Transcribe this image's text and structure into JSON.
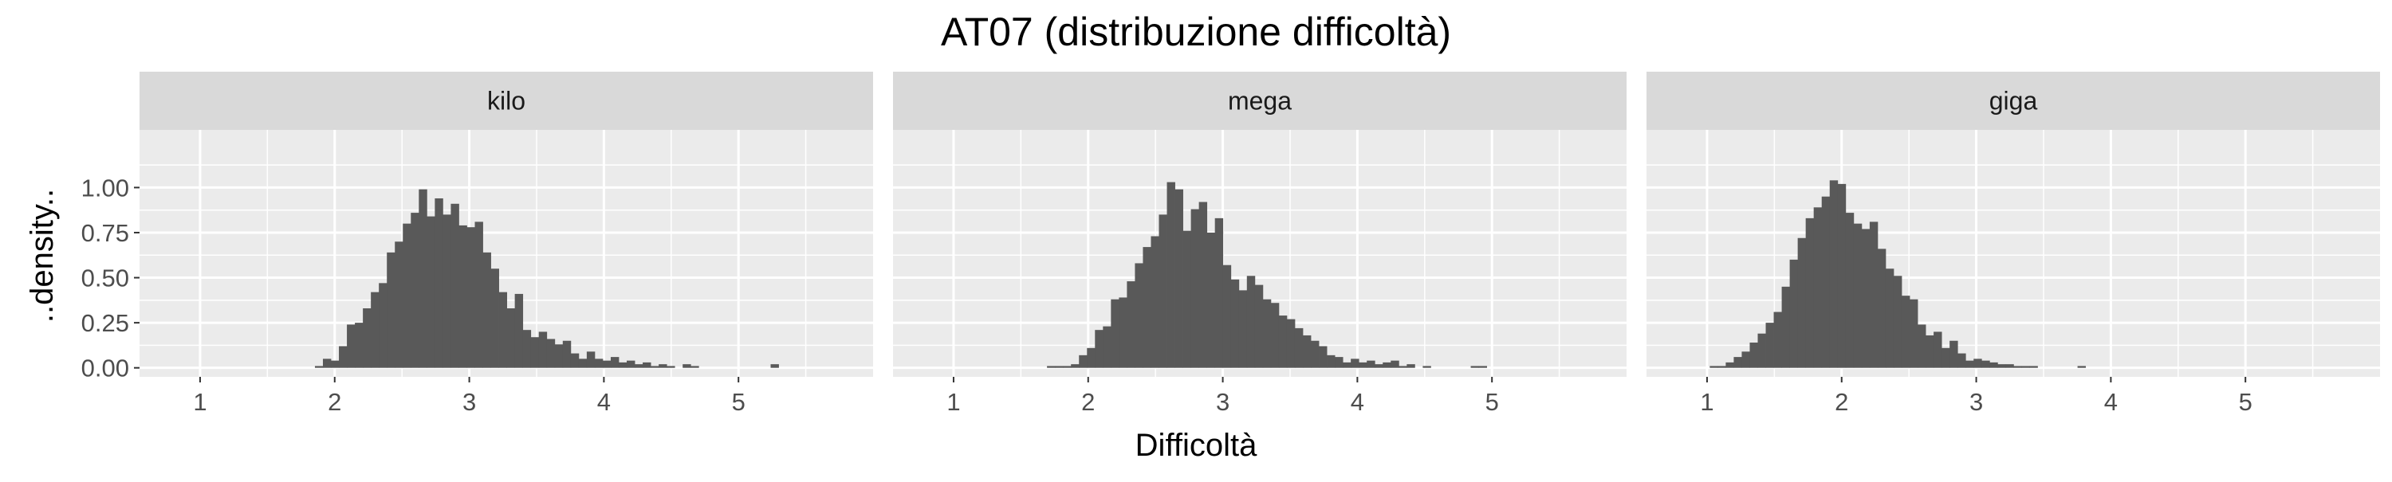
{
  "title": "AT07 (distribuzione difficoltà)",
  "xlabel": "Difficoltà",
  "ylabel": "..density..",
  "colors": {
    "panel_bg": "#EBEBEB",
    "strip_bg": "#D9D9D9",
    "grid": "#FFFFFF",
    "bar": "#595959",
    "text": "#1A1A1A",
    "tick_text": "#4D4D4D"
  },
  "chart_data": {
    "type": "bar",
    "subtype": "histogram-facets",
    "xlim": [
      0.55,
      6.0
    ],
    "ylim": [
      -0.05,
      1.32
    ],
    "x_ticks": [
      1,
      2,
      3,
      4,
      5
    ],
    "y_ticks": [
      0.0,
      0.25,
      0.5,
      0.75,
      1.0
    ],
    "y_tick_labels": [
      "0.00",
      "0.25",
      "0.50",
      "0.75",
      "1.00"
    ],
    "bin_width": 0.0594,
    "grid": true,
    "facets": [
      {
        "name": "kilo",
        "bin_start": 1.853,
        "values": [
          0.01,
          0.05,
          0.04,
          0.12,
          0.24,
          0.25,
          0.33,
          0.42,
          0.47,
          0.64,
          0.7,
          0.8,
          0.86,
          0.99,
          0.84,
          0.94,
          0.85,
          0.91,
          0.79,
          0.78,
          0.81,
          0.64,
          0.55,
          0.42,
          0.33,
          0.41,
          0.21,
          0.17,
          0.2,
          0.16,
          0.13,
          0.15,
          0.08,
          0.05,
          0.09,
          0.05,
          0.04,
          0.06,
          0.03,
          0.04,
          0.02,
          0.03,
          0.01,
          0.02,
          0.01,
          0.0,
          0.02,
          0.01,
          0.0,
          0.0,
          0.0,
          0.0,
          0.0,
          0.0,
          0.0,
          0.0,
          0.0,
          0.02
        ]
      },
      {
        "name": "mega",
        "bin_start": 1.694,
        "values": [
          0.01,
          0.01,
          0.01,
          0.02,
          0.07,
          0.11,
          0.21,
          0.23,
          0.38,
          0.39,
          0.48,
          0.58,
          0.67,
          0.73,
          0.85,
          1.03,
          0.99,
          0.76,
          0.88,
          0.92,
          0.75,
          0.83,
          0.57,
          0.49,
          0.43,
          0.51,
          0.46,
          0.38,
          0.36,
          0.29,
          0.27,
          0.22,
          0.18,
          0.15,
          0.12,
          0.07,
          0.06,
          0.03,
          0.05,
          0.03,
          0.04,
          0.02,
          0.03,
          0.04,
          0.01,
          0.02,
          0.0,
          0.01,
          0.0,
          0.0,
          0.0,
          0.0,
          0.0,
          0.01,
          0.01
        ]
      },
      {
        "name": "giga",
        "bin_start": 1.02,
        "values": [
          0.01,
          0.01,
          0.03,
          0.06,
          0.09,
          0.14,
          0.19,
          0.25,
          0.31,
          0.45,
          0.6,
          0.72,
          0.83,
          0.89,
          0.95,
          1.04,
          1.02,
          0.86,
          0.8,
          0.77,
          0.81,
          0.66,
          0.55,
          0.51,
          0.4,
          0.38,
          0.24,
          0.18,
          0.2,
          0.11,
          0.15,
          0.08,
          0.04,
          0.05,
          0.04,
          0.03,
          0.02,
          0.02,
          0.01,
          0.01,
          0.01,
          0.0,
          0.0,
          0.0,
          0.0,
          0.0,
          0.01,
          0.0,
          0.0,
          0.0,
          0.0,
          0.0
        ]
      }
    ]
  }
}
